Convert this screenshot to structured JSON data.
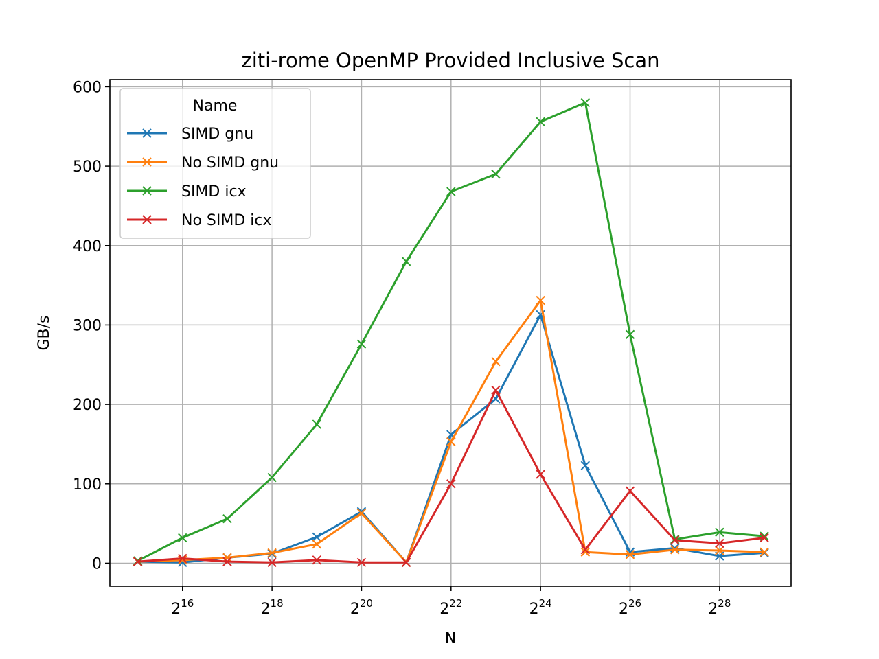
{
  "chart_data": {
    "type": "line",
    "title": "ziti-rome OpenMP Provided Inclusive Scan",
    "xlabel": "N",
    "ylabel": "GB/s",
    "x_scale": "log2",
    "x": [
      32768,
      65536,
      131072,
      262144,
      524288,
      1048576,
      2097152,
      4194304,
      8388608,
      16777216,
      33554432,
      67108864,
      134217728,
      268435456,
      536870912
    ],
    "xlim": [
      21283,
      812560000
    ],
    "ylim": [
      -29,
      609
    ],
    "x_ticks": [
      {
        "value": 65536,
        "base": "2",
        "exp": "16"
      },
      {
        "value": 262144,
        "base": "2",
        "exp": "18"
      },
      {
        "value": 1048576,
        "base": "2",
        "exp": "20"
      },
      {
        "value": 4194304,
        "base": "2",
        "exp": "22"
      },
      {
        "value": 16777216,
        "base": "2",
        "exp": "24"
      },
      {
        "value": 67108864,
        "base": "2",
        "exp": "26"
      },
      {
        "value": 268435456,
        "base": "2",
        "exp": "28"
      }
    ],
    "y_ticks": [
      {
        "value": 0,
        "label": "0"
      },
      {
        "value": 100,
        "label": "100"
      },
      {
        "value": 200,
        "label": "200"
      },
      {
        "value": 300,
        "label": "300"
      },
      {
        "value": 400,
        "label": "400"
      },
      {
        "value": 500,
        "label": "500"
      },
      {
        "value": 600,
        "label": "600"
      }
    ],
    "grid": true,
    "legend": {
      "title": "Name",
      "position": "top-left"
    },
    "marker": "x",
    "series": [
      {
        "name": "SIMD gnu",
        "color": "#1f77b4",
        "values": [
          2,
          1,
          7,
          12,
          33,
          65,
          1,
          162,
          207,
          313,
          123,
          14,
          19,
          9,
          13
        ]
      },
      {
        "name": "No SIMD gnu",
        "color": "#ff7f0e",
        "values": [
          2,
          4,
          7,
          13,
          24,
          63,
          1,
          153,
          254,
          331,
          14,
          11,
          17,
          16,
          14
        ]
      },
      {
        "name": "SIMD icx",
        "color": "#2ca02c",
        "values": [
          3,
          32,
          56,
          108,
          175,
          276,
          380,
          468,
          490,
          556,
          580,
          288,
          30,
          39,
          34
        ]
      },
      {
        "name": "No SIMD icx",
        "color": "#d62728",
        "values": [
          2,
          6,
          2,
          1,
          4,
          1,
          1,
          100,
          218,
          112,
          17,
          91,
          29,
          25,
          32
        ]
      }
    ]
  }
}
